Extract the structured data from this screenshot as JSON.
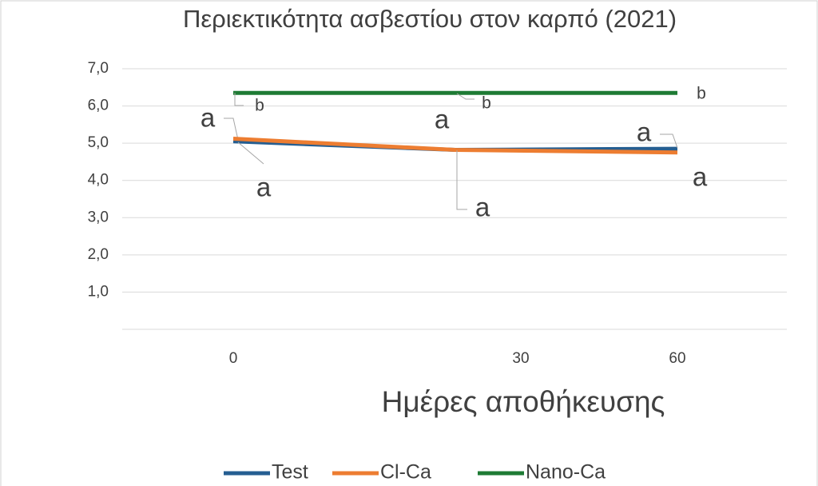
{
  "chart_data": {
    "type": "line",
    "title": "Περιεκτικότητα ασβεστίου στον καρπό (2021)",
    "x_label": "Ημέρες αποθήκευσης",
    "categories": [
      "0",
      "30",
      "60"
    ],
    "series": [
      {
        "name": "Test",
        "color": "#255e91",
        "values": [
          5.05,
          4.82,
          4.85
        ],
        "annotations": [
          "a",
          "a",
          "a"
        ]
      },
      {
        "name": "Cl-Ca",
        "color": "#ed7d31",
        "values": [
          5.12,
          4.82,
          4.75
        ],
        "annotations": [
          "a",
          "a",
          "a"
        ]
      },
      {
        "name": "Nano-Ca",
        "color": "#1e7b34",
        "values": [
          6.35,
          6.35,
          6.35
        ],
        "annotations": [
          "b",
          "b",
          "b"
        ]
      }
    ],
    "ylim": [
      0,
      7
    ],
    "yticks": [
      {
        "value": 1,
        "label": "1,0"
      },
      {
        "value": 2,
        "label": "2,0"
      },
      {
        "value": 3,
        "label": "3,0"
      },
      {
        "value": 4,
        "label": "4,0"
      },
      {
        "value": 5,
        "label": "5,0"
      },
      {
        "value": 6,
        "label": "6,0"
      },
      {
        "value": 7,
        "label": "7,0"
      }
    ],
    "grid": true,
    "legend": "bottom"
  }
}
